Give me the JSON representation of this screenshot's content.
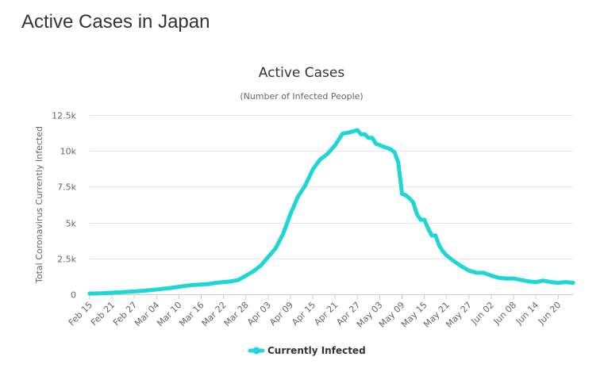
{
  "page": {
    "heading": "Active Cases in Japan"
  },
  "chart_data": {
    "type": "line",
    "title": "Active Cases",
    "subtitle": "(Number of Infected People)",
    "xlabel": "",
    "ylabel": "Total Coronavirus Currently Infected",
    "ylim": [
      0,
      12500
    ],
    "yticks": [
      {
        "value": 0,
        "label": "0"
      },
      {
        "value": 2500,
        "label": "2.5k"
      },
      {
        "value": 5000,
        "label": "5k"
      },
      {
        "value": 7500,
        "label": "7.5k"
      },
      {
        "value": 10000,
        "label": "10k"
      },
      {
        "value": 12500,
        "label": "12.5k"
      }
    ],
    "xtick_labels": [
      "Feb 15",
      "Feb 21",
      "Feb 27",
      "Mar 04",
      "Mar 10",
      "Mar 16",
      "Mar 22",
      "Mar 28",
      "Apr 03",
      "Apr 09",
      "Apr 15",
      "Apr 21",
      "Apr 27",
      "May 03",
      "May 09",
      "May 15",
      "May 21",
      "May 27",
      "Jun 02",
      "Jun 08",
      "Jun 14",
      "Jun 20"
    ],
    "grid": true,
    "legend_position": "bottom-center",
    "color": "#1fd6d6",
    "series": [
      {
        "name": "Currently Infected",
        "x": [
          "Feb 15",
          "Feb 17",
          "Feb 19",
          "Feb 21",
          "Feb 23",
          "Feb 25",
          "Feb 27",
          "Feb 29",
          "Mar 02",
          "Mar 04",
          "Mar 06",
          "Mar 08",
          "Mar 10",
          "Mar 12",
          "Mar 14",
          "Mar 16",
          "Mar 18",
          "Mar 20",
          "Mar 22",
          "Mar 24",
          "Mar 26",
          "Mar 28",
          "Mar 30",
          "Apr 01",
          "Apr 03",
          "Apr 05",
          "Apr 07",
          "Apr 09",
          "Apr 11",
          "Apr 13",
          "Apr 15",
          "Apr 17",
          "Apr 19",
          "Apr 21",
          "Apr 23",
          "Apr 25",
          "Apr 27",
          "Apr 28",
          "Apr 29",
          "Apr 30",
          "May 01",
          "May 02",
          "May 03",
          "May 04",
          "May 05",
          "May 06",
          "May 07",
          "May 08",
          "May 09",
          "May 10",
          "May 11",
          "May 12",
          "May 13",
          "May 14",
          "May 15",
          "May 16",
          "May 17",
          "May 18",
          "May 19",
          "May 20",
          "May 21",
          "May 23",
          "May 25",
          "May 27",
          "May 29",
          "May 31",
          "Jun 02",
          "Jun 04",
          "Jun 06",
          "Jun 08",
          "Jun 10",
          "Jun 12",
          "Jun 14",
          "Jun 16",
          "Jun 18",
          "Jun 20",
          "Jun 22",
          "Jun 24"
        ],
        "values": [
          50,
          60,
          80,
          110,
          140,
          170,
          200,
          240,
          280,
          330,
          390,
          450,
          520,
          600,
          650,
          680,
          720,
          800,
          850,
          900,
          1000,
          1300,
          1600,
          2000,
          2600,
          3200,
          4200,
          5600,
          6800,
          7600,
          8700,
          9400,
          9800,
          10400,
          11200,
          11300,
          11450,
          11150,
          11150,
          10900,
          10900,
          10500,
          10400,
          10300,
          10200,
          10100,
          9900,
          9200,
          7000,
          6900,
          6700,
          6400,
          5600,
          5200,
          5200,
          4600,
          4100,
          4100,
          3400,
          3000,
          2700,
          2300,
          1950,
          1650,
          1500,
          1500,
          1300,
          1150,
          1100,
          1100,
          1000,
          900,
          850,
          950,
          850,
          800,
          850,
          800
        ]
      }
    ]
  }
}
